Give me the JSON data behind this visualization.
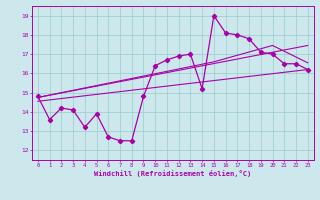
{
  "xlabel": "Windchill (Refroidissement éolien,°C)",
  "xlim": [
    -0.5,
    23.5
  ],
  "ylim": [
    11.5,
    19.5
  ],
  "xticks": [
    0,
    1,
    2,
    3,
    4,
    5,
    6,
    7,
    8,
    9,
    10,
    11,
    12,
    13,
    14,
    15,
    16,
    17,
    18,
    19,
    20,
    21,
    22,
    23
  ],
  "yticks": [
    12,
    13,
    14,
    15,
    16,
    17,
    18,
    19
  ],
  "bg_color": "#cce8ec",
  "line_color": "#aa00aa",
  "grid_color": "#99cccc",
  "main_x": [
    0,
    1,
    2,
    3,
    4,
    5,
    6,
    7,
    8,
    9,
    10,
    11,
    12,
    13,
    14,
    15,
    16,
    17,
    18,
    19,
    20,
    21,
    22,
    23
  ],
  "main_y": [
    14.8,
    13.6,
    14.2,
    14.1,
    13.2,
    13.9,
    12.7,
    12.5,
    12.5,
    14.8,
    16.4,
    16.7,
    16.9,
    17.0,
    15.2,
    19.0,
    18.1,
    18.0,
    17.8,
    17.1,
    17.0,
    16.5,
    16.5,
    16.2
  ],
  "line1_x": [
    0,
    23
  ],
  "line1_y": [
    14.55,
    16.2
  ],
  "line2_x": [
    0,
    23
  ],
  "line2_y": [
    14.75,
    17.45
  ],
  "line3_x": [
    0,
    15,
    20,
    23
  ],
  "line3_y": [
    14.75,
    16.6,
    17.45,
    16.55
  ]
}
